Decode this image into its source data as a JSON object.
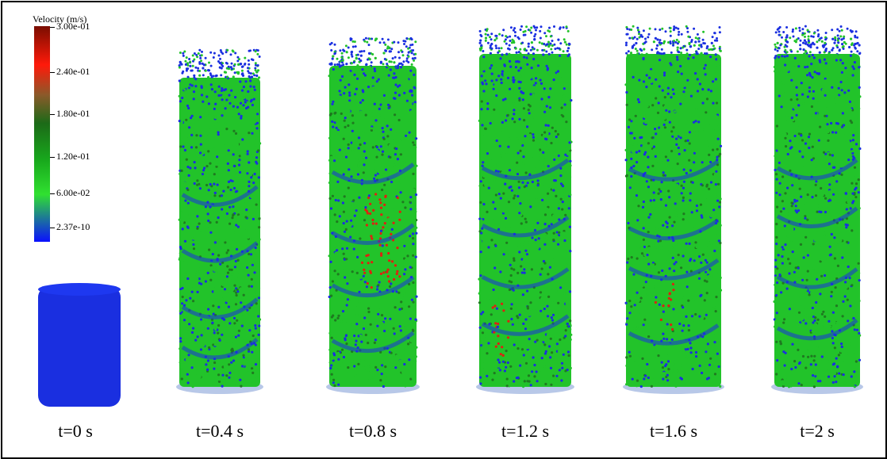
{
  "legend": {
    "title": "Velocity (m/s)",
    "ticks": [
      "3.00e-01",
      "2.40e-01",
      "1.80e-01",
      "1.20e-01",
      "6.00e-02",
      "2.37e-10"
    ],
    "colors": [
      "#8a1000",
      "#ff2010",
      "#2a7a1a",
      "#1a9c1a",
      "#28d82a",
      "#1414ff"
    ]
  },
  "snapshots": [
    {
      "label": "t=0 s"
    },
    {
      "label": "t=0.4 s"
    },
    {
      "label": "t=0.8 s"
    },
    {
      "label": "t=1.2 s"
    },
    {
      "label": "t=1.6 s"
    },
    {
      "label": "t=2 s"
    }
  ],
  "colors": {
    "blue": "#1a2fe0",
    "green": "#22c32a",
    "dark_green": "#1f7a20",
    "red": "#e02010",
    "base": "#b8c8e8"
  }
}
